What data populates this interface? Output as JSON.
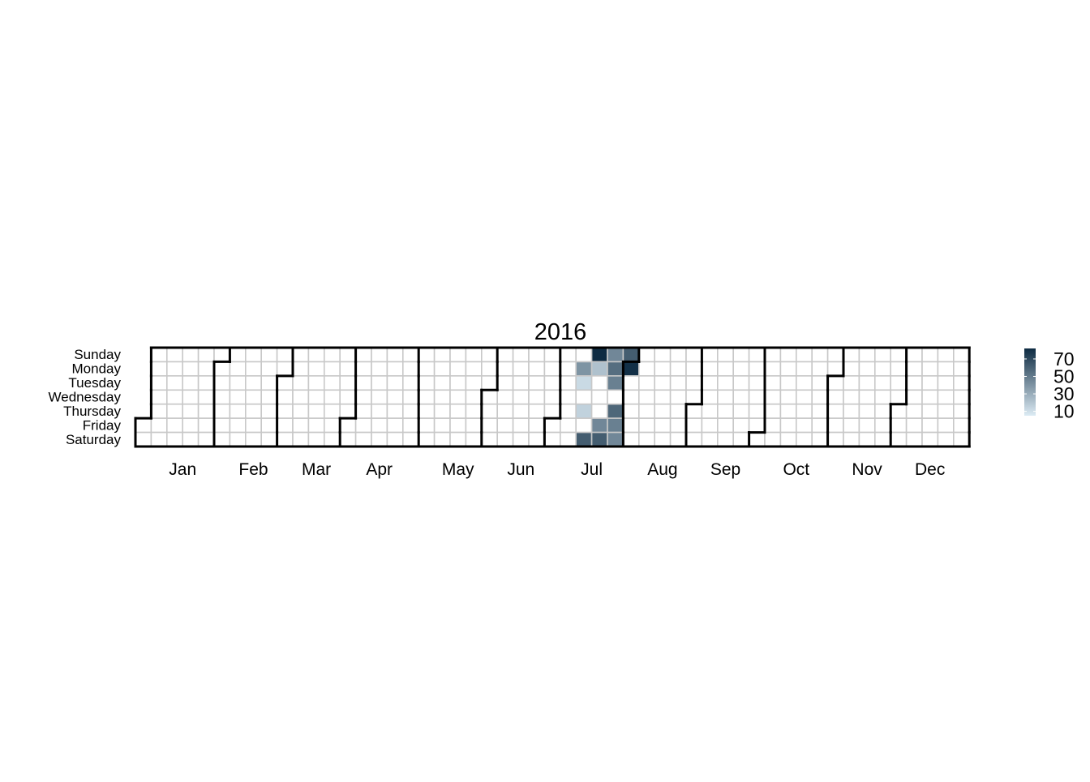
{
  "chart_data": {
    "type": "heatmap",
    "title": "2016",
    "year": 2016,
    "weekday_labels": [
      "Sunday",
      "Monday",
      "Tuesday",
      "Wednesday",
      "Thursday",
      "Friday",
      "Saturday"
    ],
    "month_labels": [
      "Jan",
      "Feb",
      "Mar",
      "Apr",
      "May",
      "Jun",
      "Jul",
      "Aug",
      "Sep",
      "Oct",
      "Nov",
      "Dec"
    ],
    "color_scale": {
      "low": "#dcebf4",
      "high": "#0e2b42",
      "empty": "#ffffff",
      "cell_border": "#c8c8c8",
      "month_border": "#000000",
      "ticks": [
        10,
        30,
        50,
        70
      ],
      "range": [
        5,
        82
      ]
    },
    "values": [
      {
        "date": "2016-07-11",
        "value": 40
      },
      {
        "date": "2016-07-12",
        "value": 12
      },
      {
        "date": "2016-07-14",
        "value": 15
      },
      {
        "date": "2016-07-16",
        "value": 62
      },
      {
        "date": "2016-07-17",
        "value": 82
      },
      {
        "date": "2016-07-18",
        "value": 22
      },
      {
        "date": "2016-07-22",
        "value": 45
      },
      {
        "date": "2016-07-23",
        "value": 62
      },
      {
        "date": "2016-07-24",
        "value": 45
      },
      {
        "date": "2016-07-25",
        "value": 55
      },
      {
        "date": "2016-07-26",
        "value": 48
      },
      {
        "date": "2016-07-28",
        "value": 58
      },
      {
        "date": "2016-07-29",
        "value": 48
      },
      {
        "date": "2016-07-30",
        "value": 45
      },
      {
        "date": "2016-07-31",
        "value": 62
      },
      {
        "date": "2016-08-01",
        "value": 80
      }
    ]
  }
}
